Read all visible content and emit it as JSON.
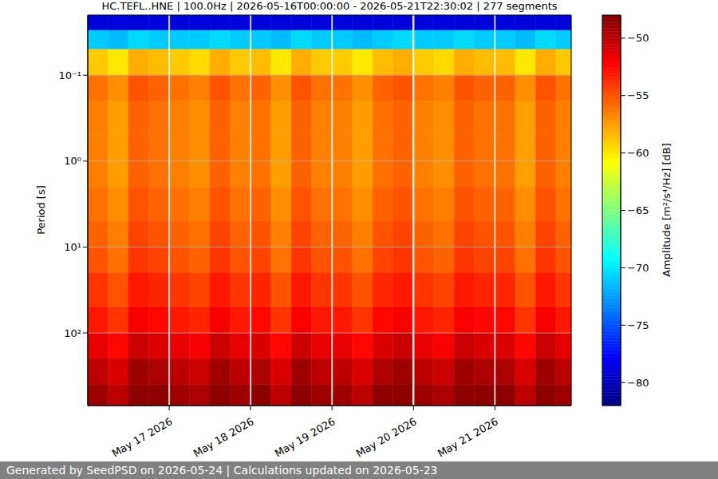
{
  "chart_data": {
    "type": "heatmap",
    "title": "HC.TEFL..HNE | 100.0Hz | 2026-05-16T00:00:00 - 2026-05-21T22:30:02 | 277 segments",
    "y_label": "Period [s]",
    "colorbar_label": "Amplitude [m²/s⁴/Hz] [dB]",
    "footer": "Generated by SeedPSD on 2026-05-24 | Calculations updated on 2026-05-23",
    "log": "y",
    "grid": true,
    "xlim": [
      "2026-05-16T00:00:00",
      "2026-05-21T22:30:02"
    ],
    "xticks": [
      {
        "value": "2026-05-17T00:00:00",
        "label": "May 17 2026"
      },
      {
        "value": "2026-05-18T00:00:00",
        "label": "May 18 2026"
      },
      {
        "value": "2026-05-19T00:00:00",
        "label": "May 19 2026"
      },
      {
        "value": "2026-05-20T00:00:00",
        "label": "May 20 2026"
      },
      {
        "value": "2026-05-21T00:00:00",
        "label": "May 21 2026"
      }
    ],
    "ylim": [
      0.02,
      700
    ],
    "yticks": [
      {
        "value": 0.1,
        "label": "10⁻¹"
      },
      {
        "value": 1,
        "label": "10⁰"
      },
      {
        "value": 10,
        "label": "10¹"
      },
      {
        "value": 100,
        "label": "10²"
      }
    ],
    "clim": [
      -82,
      -48
    ],
    "cticks": [
      {
        "value": -80,
        "label": "−80"
      },
      {
        "value": -75,
        "label": "−75"
      },
      {
        "value": -70,
        "label": "−70"
      },
      {
        "value": -65,
        "label": "−65"
      },
      {
        "value": -60,
        "label": "−60"
      },
      {
        "value": -55,
        "label": "−55"
      },
      {
        "value": -50,
        "label": "−50"
      }
    ],
    "period_bins": [
      0.02,
      0.03,
      0.05,
      0.1,
      0.2,
      0.5,
      1,
      2,
      5,
      10,
      20,
      50,
      100,
      200,
      400,
      700
    ],
    "time_bins": [
      [
        "2026-05-16T00:00:00",
        "2026-05-16T06:00:00"
      ],
      [
        "2026-05-16T06:00:00",
        "2026-05-16T12:00:00"
      ],
      [
        "2026-05-16T12:00:00",
        "2026-05-16T18:00:00"
      ],
      [
        "2026-05-16T18:00:00",
        "2026-05-16T23:45:00"
      ],
      [
        "2026-05-17T00:15:00",
        "2026-05-17T06:00:00"
      ],
      [
        "2026-05-17T06:00:00",
        "2026-05-17T12:00:00"
      ],
      [
        "2026-05-17T12:00:00",
        "2026-05-17T18:00:00"
      ],
      [
        "2026-05-17T18:00:00",
        "2026-05-17T23:45:00"
      ],
      [
        "2026-05-18T00:15:00",
        "2026-05-18T06:00:00"
      ],
      [
        "2026-05-18T06:00:00",
        "2026-05-18T12:00:00"
      ],
      [
        "2026-05-18T12:00:00",
        "2026-05-18T18:00:00"
      ],
      [
        "2026-05-18T18:00:00",
        "2026-05-18T23:45:00"
      ],
      [
        "2026-05-19T00:15:00",
        "2026-05-19T06:00:00"
      ],
      [
        "2026-05-19T06:00:00",
        "2026-05-19T12:00:00"
      ],
      [
        "2026-05-19T12:00:00",
        "2026-05-19T18:00:00"
      ],
      [
        "2026-05-19T18:00:00",
        "2026-05-19T23:40:00"
      ],
      [
        "2026-05-20T00:20:00",
        "2026-05-20T06:00:00"
      ],
      [
        "2026-05-20T06:00:00",
        "2026-05-20T12:00:00"
      ],
      [
        "2026-05-20T12:00:00",
        "2026-05-20T18:00:00"
      ],
      [
        "2026-05-20T18:00:00",
        "2026-05-20T23:45:00"
      ],
      [
        "2026-05-21T00:15:00",
        "2026-05-21T06:00:00"
      ],
      [
        "2026-05-21T06:00:00",
        "2026-05-21T12:00:00"
      ],
      [
        "2026-05-21T12:00:00",
        "2026-05-21T18:00:00"
      ],
      [
        "2026-05-21T18:00:00",
        "2026-05-21T22:30:02"
      ]
    ],
    "cells": [
      [
        -79,
        -71,
        -59,
        -56,
        -56.5,
        -56.5,
        -56.5,
        -56,
        -55.5,
        -55,
        -54,
        -53,
        -51.5,
        -50,
        -49
      ],
      [
        -79,
        -71.5,
        -60,
        -57,
        -57.5,
        -57.5,
        -57.5,
        -57,
        -56.5,
        -56,
        -55,
        -54,
        -52.5,
        -51,
        -50
      ],
      [
        -79,
        -70.5,
        -58,
        -55,
        -55.5,
        -55.5,
        -55.5,
        -55,
        -54.5,
        -54,
        -53,
        -52,
        -50.5,
        -49,
        -48.5
      ],
      [
        -79,
        -71,
        -58.5,
        -55.5,
        -56,
        -56,
        -56,
        -55.5,
        -55,
        -54.5,
        -53.5,
        -52.5,
        -51,
        -49.5,
        -48.5
      ],
      [
        -79,
        -71,
        -59,
        -56,
        -56.5,
        -56.5,
        -56.5,
        -56,
        -55.5,
        -55,
        -54,
        -53,
        -51.5,
        -50,
        -49
      ],
      [
        -79,
        -71,
        -59.5,
        -56.5,
        -57,
        -57,
        -57,
        -56.5,
        -56,
        -55.5,
        -54.5,
        -53.5,
        -52,
        -50.5,
        -49.5
      ],
      [
        -79,
        -70.5,
        -58,
        -55,
        -55.5,
        -55.5,
        -55.5,
        -55,
        -54.5,
        -54,
        -53,
        -52,
        -50.5,
        -49,
        -48.5
      ],
      [
        -79,
        -71,
        -59,
        -56,
        -56.5,
        -56.5,
        -56.5,
        -56,
        -55.5,
        -55,
        -54,
        -53,
        -51.5,
        -50,
        -49
      ],
      [
        -79,
        -71,
        -58.5,
        -55.5,
        -56,
        -56,
        -56,
        -55.5,
        -55,
        -54.5,
        -53.5,
        -52.5,
        -51,
        -49.5,
        -48.5
      ],
      [
        -79,
        -71.5,
        -60,
        -57,
        -57.5,
        -57.5,
        -57.5,
        -57,
        -56.5,
        -56,
        -55,
        -54,
        -52.5,
        -51,
        -50
      ],
      [
        -79,
        -70.5,
        -58,
        -55,
        -55.5,
        -55.5,
        -55.5,
        -55,
        -54.5,
        -54,
        -53,
        -52,
        -50.5,
        -49,
        -48.5
      ],
      [
        -79,
        -71,
        -59,
        -56,
        -56.5,
        -56.5,
        -56.5,
        -56,
        -55.5,
        -55,
        -54,
        -53,
        -51.5,
        -50,
        -49
      ],
      [
        -79,
        -71,
        -59,
        -56,
        -56.5,
        -56.5,
        -56.5,
        -56,
        -55.5,
        -55,
        -54,
        -53,
        -51.5,
        -50,
        -49
      ],
      [
        -79,
        -71.5,
        -60,
        -57,
        -57.5,
        -57.5,
        -57.5,
        -57,
        -56.5,
        -56,
        -55,
        -54,
        -52.5,
        -51,
        -50
      ],
      [
        -79,
        -71,
        -58.5,
        -55.5,
        -56,
        -56,
        -56,
        -55.5,
        -55,
        -54.5,
        -53.5,
        -52.5,
        -51,
        -49.5,
        -48.5
      ],
      [
        -79,
        -70.5,
        -58,
        -55,
        -55.5,
        -55.5,
        -55.5,
        -55,
        -54.5,
        -54,
        -53,
        -52,
        -50.5,
        -49,
        -48.5
      ],
      [
        -79,
        -71,
        -59,
        -56,
        -56.5,
        -56.5,
        -56.5,
        -56,
        -55.5,
        -55,
        -54,
        -53,
        -51.5,
        -50,
        -49
      ],
      [
        -79,
        -71,
        -59.5,
        -56.5,
        -57,
        -57,
        -57,
        -56.5,
        -56,
        -55.5,
        -54.5,
        -53.5,
        -52,
        -50.5,
        -49.5
      ],
      [
        -79,
        -70.5,
        -58,
        -55,
        -55.5,
        -55.5,
        -55.5,
        -55,
        -54.5,
        -54,
        -53,
        -52,
        -50.5,
        -49,
        -48.5
      ],
      [
        -79,
        -71,
        -58.5,
        -55.5,
        -56,
        -56,
        -56,
        -55.5,
        -55,
        -54.5,
        -53.5,
        -52.5,
        -51,
        -49.5,
        -48.5
      ],
      [
        -79,
        -71,
        -58.5,
        -55.5,
        -56,
        -56,
        -56,
        -55.5,
        -55,
        -54.5,
        -53.5,
        -52.5,
        -51,
        -49.5,
        -48.5
      ],
      [
        -79,
        -71.5,
        -60,
        -57,
        -57.5,
        -57.5,
        -57.5,
        -57,
        -56.5,
        -56,
        -55,
        -54,
        -52.5,
        -51,
        -50
      ],
      [
        -79,
        -70.5,
        -58,
        -55,
        -55.5,
        -55.5,
        -55.5,
        -55,
        -54.5,
        -54,
        -53,
        -52,
        -50.5,
        -49,
        -48.5
      ],
      [
        -79,
        -71,
        -59,
        -56,
        -56.5,
        -56.5,
        -56.5,
        -56,
        -55.5,
        -55,
        -54,
        -53,
        -51.5,
        -50,
        -49
      ]
    ]
  }
}
